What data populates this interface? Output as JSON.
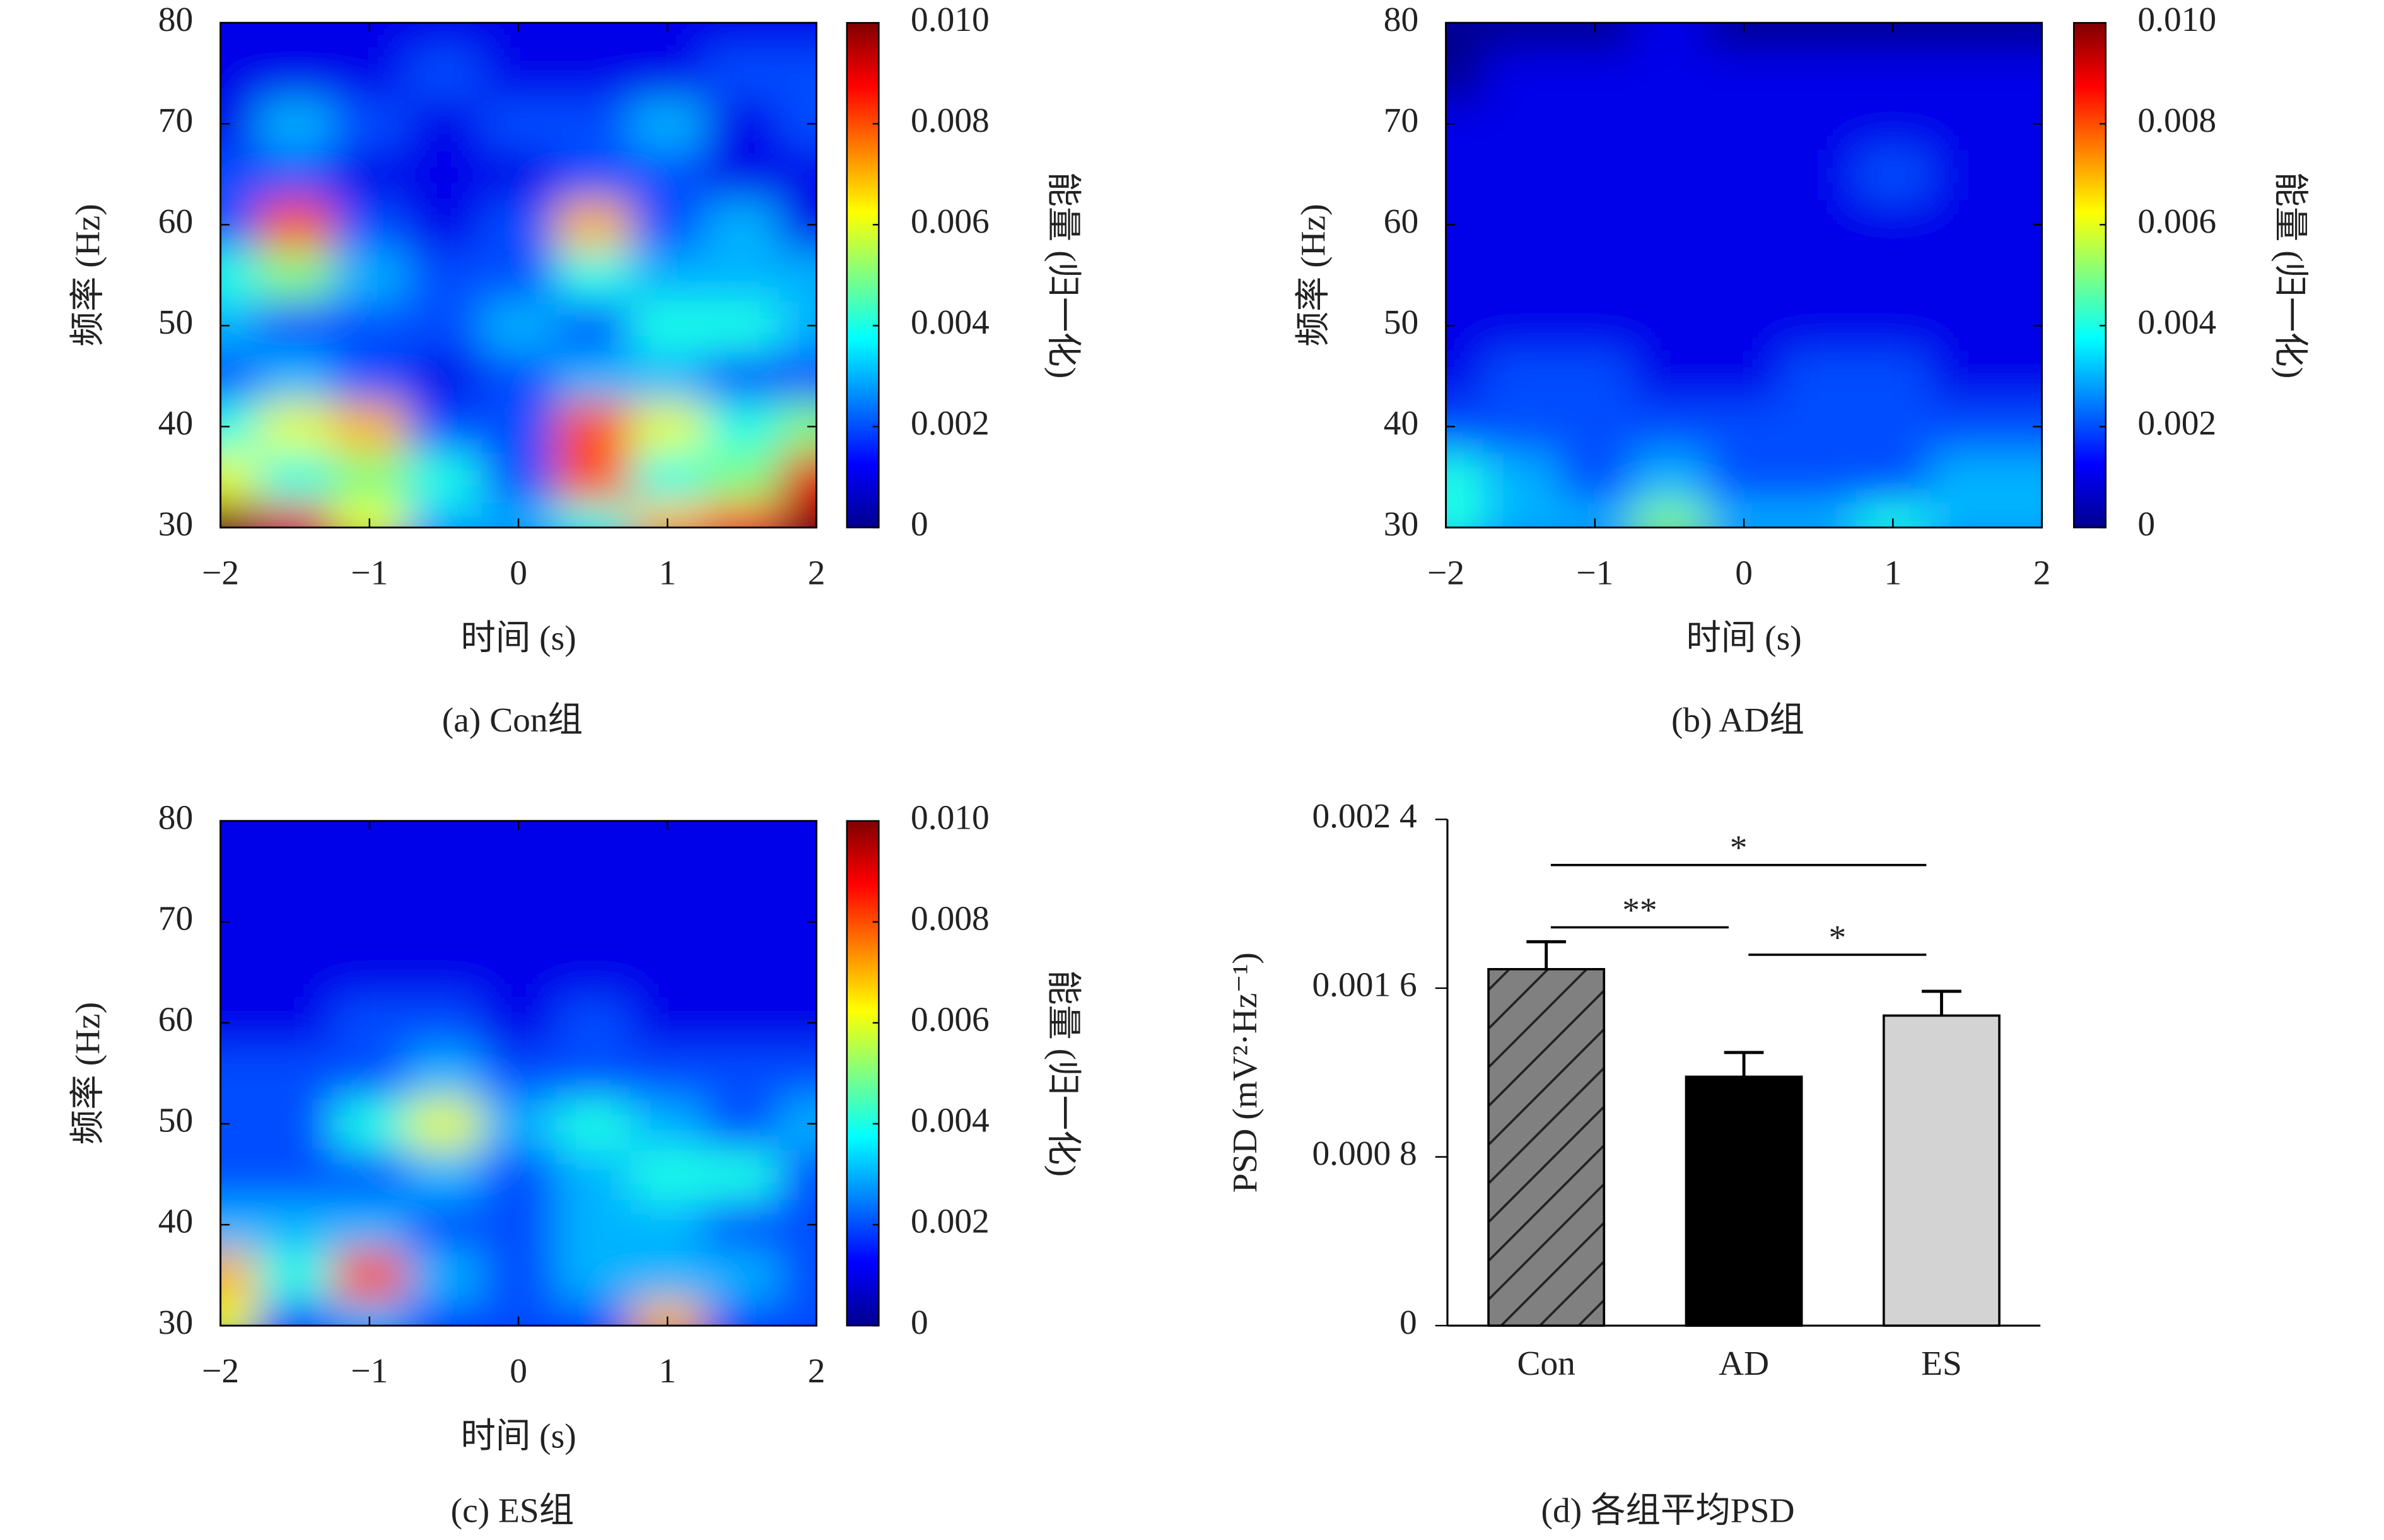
{
  "chart_data": [
    {
      "type": "heatmap",
      "caption": "(a) Con组",
      "xlabel": "时间 (s)",
      "ylabel": "频率 (Hz)",
      "colorbar_label": "能量 (归一化)",
      "x": [
        -2,
        -1.5,
        -1,
        -0.5,
        0,
        0.5,
        1,
        1.5,
        2
      ],
      "y": [
        30,
        35,
        40,
        45,
        50,
        55,
        60,
        65,
        70,
        75,
        80
      ],
      "z": [
        [
          0.01,
          0.009,
          0.006,
          0.003,
          0.003,
          0.004,
          0.007,
          0.008,
          0.01
        ],
        [
          0.006,
          0.004,
          0.005,
          0.004,
          0.002,
          0.008,
          0.004,
          0.005,
          0.009
        ],
        [
          0.004,
          0.006,
          0.007,
          0.002,
          0.002,
          0.008,
          0.006,
          0.004,
          0.005
        ],
        [
          0.002,
          0.003,
          0.002,
          0.001,
          0.002,
          0.003,
          0.003,
          0.002,
          0.002
        ],
        [
          0.003,
          0.002,
          0.002,
          0.002,
          0.003,
          0.002,
          0.004,
          0.004,
          0.003
        ],
        [
          0.004,
          0.005,
          0.003,
          0.002,
          0.002,
          0.004,
          0.003,
          0.003,
          0.003
        ],
        [
          0.002,
          0.008,
          0.002,
          0.001,
          0.002,
          0.007,
          0.002,
          0.003,
          0.001
        ],
        [
          0.002,
          0.002,
          0.001,
          0.001,
          0.001,
          0.002,
          0.002,
          0.001,
          0.001
        ],
        [
          0.001,
          0.003,
          0.002,
          0.001,
          0.002,
          0.002,
          0.003,
          0.001,
          0.002
        ],
        [
          0.001,
          0.001,
          0.001,
          0.002,
          0.001,
          0.001,
          0.001,
          0.002,
          0.002
        ],
        [
          0.001,
          0.001,
          0.001,
          0.001,
          0.001,
          0.001,
          0.001,
          0.001,
          0.001
        ]
      ],
      "xlim": [
        -2,
        2
      ],
      "ylim": [
        30,
        80
      ],
      "clim": [
        0,
        0.01
      ],
      "xticks": [
        {
          "value": -2,
          "label": "−2"
        },
        {
          "value": -1,
          "label": "−1"
        },
        0,
        1,
        2
      ],
      "yticks": [
        30,
        40,
        50,
        60,
        70,
        80
      ],
      "cticks": [
        0,
        0.002,
        0.004,
        0.006,
        0.008,
        {
          "value": 0.01,
          "label": "0.010"
        }
      ],
      "colormap": [
        "#00008f",
        "#0000ff",
        "#0080ff",
        "#00ffff",
        "#80ff80",
        "#ffff00",
        "#ff8000",
        "#ff0000",
        "#800000"
      ]
    },
    {
      "type": "heatmap",
      "caption": "(b) AD组",
      "xlabel": "时间 (s)",
      "ylabel": "频率 (Hz)",
      "colorbar_label": "能量 (归一化)",
      "x": [
        -2,
        -1.5,
        -1,
        -0.5,
        0,
        0.5,
        1,
        1.5,
        2
      ],
      "y": [
        30,
        35,
        40,
        45,
        50,
        55,
        60,
        65,
        70,
        75,
        80
      ],
      "z": [
        [
          0.004,
          0.003,
          0.003,
          0.005,
          0.003,
          0.003,
          0.004,
          0.003,
          0.003
        ],
        [
          0.004,
          0.003,
          0.002,
          0.003,
          0.002,
          0.002,
          0.002,
          0.003,
          0.003
        ],
        [
          0.002,
          0.002,
          0.002,
          0.002,
          0.002,
          0.002,
          0.002,
          0.002,
          0.002
        ],
        [
          0.001,
          0.002,
          0.002,
          0.001,
          0.001,
          0.002,
          0.002,
          0.001,
          0.001
        ],
        [
          0.001,
          0.001,
          0.001,
          0.001,
          0.001,
          0.001,
          0.001,
          0.001,
          0.001
        ],
        [
          0.001,
          0.001,
          0.001,
          0.001,
          0.001,
          0.001,
          0.001,
          0.001,
          0.001
        ],
        [
          0.001,
          0.001,
          0.001,
          0.001,
          0.001,
          0.001,
          0.001,
          0.001,
          0.001
        ],
        [
          0.001,
          0.001,
          0.001,
          0.001,
          0.001,
          0.001,
          0.002,
          0.001,
          0.001
        ],
        [
          0.001,
          0.001,
          0.001,
          0.001,
          0.001,
          0.001,
          0.001,
          0.001,
          0.001
        ],
        [
          0.0,
          0.001,
          0.001,
          0.001,
          0.001,
          0.001,
          0.001,
          0.001,
          0.001
        ],
        [
          0.0,
          0.0,
          0.0,
          0.001,
          0.0,
          0.0,
          0.0,
          0.0,
          0.0
        ]
      ],
      "xlim": [
        -2,
        2
      ],
      "ylim": [
        30,
        80
      ],
      "clim": [
        0,
        0.01
      ],
      "xticks": [
        {
          "value": -2,
          "label": "−2"
        },
        {
          "value": -1,
          "label": "−1"
        },
        0,
        1,
        2
      ],
      "yticks": [
        30,
        40,
        50,
        60,
        70,
        80
      ],
      "cticks": [
        0,
        0.002,
        0.004,
        0.006,
        0.008,
        {
          "value": 0.01,
          "label": "0.010"
        }
      ],
      "colormap": [
        "#00008f",
        "#0000ff",
        "#0080ff",
        "#00ffff",
        "#80ff80",
        "#ffff00",
        "#ff8000",
        "#ff0000",
        "#800000"
      ]
    },
    {
      "type": "heatmap",
      "caption": "(c) ES组",
      "xlabel": "时间 (s)",
      "ylabel": "频率 (Hz)",
      "colorbar_label": "能量 (归一化)",
      "x": [
        -2,
        -1.5,
        -1,
        -0.5,
        0,
        0.5,
        1,
        1.5,
        2
      ],
      "y": [
        30,
        35,
        40,
        45,
        50,
        55,
        60,
        65,
        70,
        75,
        80
      ],
      "z": [
        [
          0.006,
          0.002,
          0.003,
          0.002,
          0.002,
          0.002,
          0.007,
          0.002,
          0.002
        ],
        [
          0.007,
          0.004,
          0.008,
          0.003,
          0.002,
          0.003,
          0.003,
          0.003,
          0.002
        ],
        [
          0.003,
          0.003,
          0.003,
          0.002,
          0.002,
          0.003,
          0.003,
          0.002,
          0.002
        ],
        [
          0.002,
          0.002,
          0.002,
          0.003,
          0.002,
          0.003,
          0.004,
          0.004,
          0.002
        ],
        [
          0.002,
          0.002,
          0.004,
          0.006,
          0.003,
          0.004,
          0.003,
          0.002,
          0.003
        ],
        [
          0.002,
          0.002,
          0.002,
          0.003,
          0.002,
          0.002,
          0.002,
          0.002,
          0.002
        ],
        [
          0.001,
          0.001,
          0.002,
          0.002,
          0.001,
          0.002,
          0.001,
          0.001,
          0.001
        ],
        [
          0.001,
          0.001,
          0.001,
          0.001,
          0.001,
          0.001,
          0.001,
          0.001,
          0.001
        ],
        [
          0.001,
          0.001,
          0.001,
          0.001,
          0.001,
          0.001,
          0.001,
          0.001,
          0.001
        ],
        [
          0.001,
          0.001,
          0.001,
          0.001,
          0.001,
          0.001,
          0.001,
          0.001,
          0.001
        ],
        [
          0.001,
          0.001,
          0.001,
          0.001,
          0.001,
          0.001,
          0.001,
          0.001,
          0.001
        ]
      ],
      "xlim": [
        -2,
        2
      ],
      "ylim": [
        30,
        80
      ],
      "clim": [
        0,
        0.01
      ],
      "xticks": [
        {
          "value": -2,
          "label": "−2"
        },
        {
          "value": -1,
          "label": "−1"
        },
        0,
        1,
        2
      ],
      "yticks": [
        30,
        40,
        50,
        60,
        70,
        80
      ],
      "cticks": [
        0,
        0.002,
        0.004,
        0.006,
        0.008,
        {
          "value": 0.01,
          "label": "0.010"
        }
      ],
      "colormap": [
        "#00008f",
        "#0000ff",
        "#0080ff",
        "#00ffff",
        "#80ff80",
        "#ffff00",
        "#ff8000",
        "#ff0000",
        "#800000"
      ]
    },
    {
      "type": "bar",
      "caption": "(d) 各组平均PSD",
      "ylabel": "PSD (mV²·Hz⁻¹)",
      "categories": [
        "Con",
        "AD",
        "ES"
      ],
      "values": [
        0.00169,
        0.00118,
        0.00147
      ],
      "errors": [
        0.00013,
        0.000115,
        0.000115
      ],
      "colors": [
        "#808080",
        "#000000",
        "#d3d3d3"
      ],
      "hatched": [
        true,
        false,
        false
      ],
      "ylim": [
        0,
        0.0024
      ],
      "yticks": [
        0,
        {
          "value": 0.0008,
          "label": "0.000 8"
        },
        {
          "value": 0.0016,
          "label": "0.001 6"
        },
        {
          "value": 0.0024,
          "label": "0.002 4"
        }
      ],
      "annotations": [
        {
          "text": "*",
          "pair": [
            0,
            2
          ]
        },
        {
          "text": "**",
          "pair": [
            0,
            1
          ]
        },
        {
          "text": "*",
          "pair": [
            1,
            2
          ]
        }
      ]
    }
  ]
}
